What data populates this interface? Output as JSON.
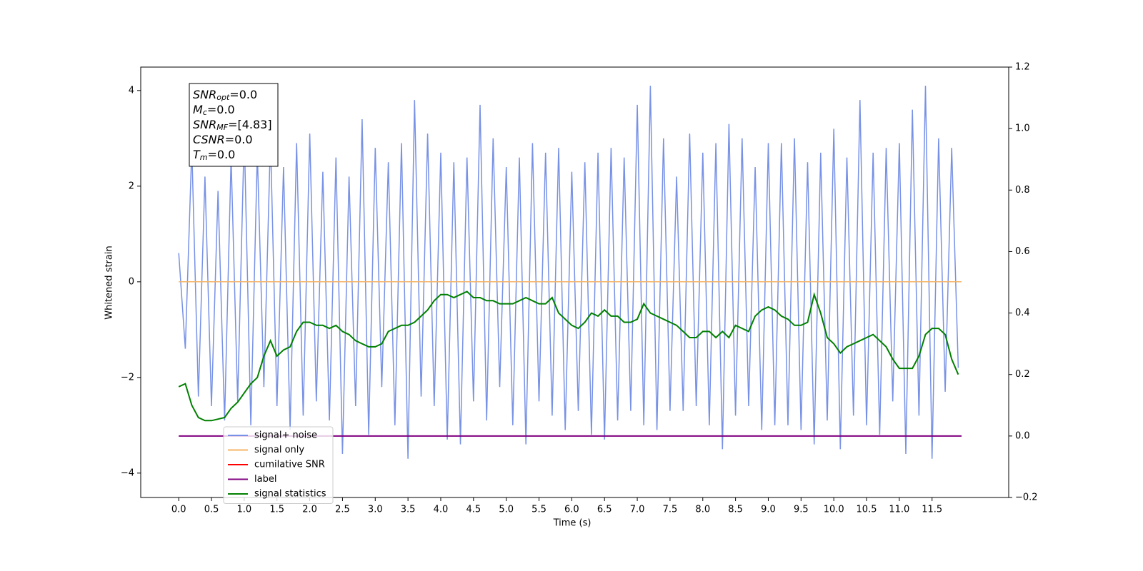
{
  "chart_data": {
    "type": "line",
    "x_label": "Time (s)",
    "y_label": "Whitened strain",
    "xlim": [
      -0.58,
      12.67
    ],
    "ylim": [
      -4.51,
      4.49
    ],
    "y2lim": [
      -0.2,
      1.2
    ],
    "xticks": [
      {
        "value": 0,
        "label": "0.0"
      },
      0.5,
      {
        "value": 1,
        "label": "1.0"
      },
      1.5,
      {
        "value": 2,
        "label": "2.0"
      },
      2.5,
      {
        "value": 3,
        "label": "3.0"
      },
      3.5,
      {
        "value": 4,
        "label": "4.0"
      },
      4.5,
      {
        "value": 5,
        "label": "5.0"
      },
      5.5,
      {
        "value": 6,
        "label": "6.0"
      },
      6.5,
      {
        "value": 7,
        "label": "7.0"
      },
      7.5,
      {
        "value": 8,
        "label": "8.0"
      },
      8.5,
      {
        "value": 9,
        "label": "9.0"
      },
      9.5,
      {
        "value": 10,
        "label": "10.0"
      },
      10.5,
      {
        "value": 11,
        "label": "11.0"
      },
      11.5
    ],
    "yticks": [
      {
        "value": -4,
        "label": "−4"
      },
      {
        "value": -2,
        "label": "−2"
      },
      0,
      2,
      4
    ],
    "y2ticks": [
      {
        "value": -0.2,
        "label": "−0.2"
      },
      {
        "value": 0,
        "label": "0.0"
      },
      0.2,
      0.4,
      0.6,
      0.8,
      {
        "value": 1,
        "label": "1.0"
      },
      1.2
    ],
    "legend": "lower left",
    "annotation": [
      {
        "main": "SNR",
        "sub": "opt",
        "rest": "=0.0"
      },
      {
        "main": "M",
        "sub": "c",
        "rest": "=0.0"
      },
      {
        "main": "SNR",
        "sub": "MF",
        "rest": "=[4.83]"
      },
      {
        "main": "CSNR",
        "rest": "=0.0"
      },
      {
        "main": "T",
        "sub": "m",
        "rest": "=0.0"
      }
    ],
    "series": [
      {
        "name": "signal+ noise",
        "color": "#7791e6",
        "x": [
          0,
          0.1,
          0.2,
          0.3,
          0.4,
          0.5,
          0.6,
          0.7,
          0.8,
          0.9,
          1,
          1.1,
          1.2,
          1.3,
          1.4,
          1.5,
          1.6,
          1.7,
          1.8,
          1.9,
          2,
          2.1,
          2.2,
          2.3,
          2.4,
          2.5,
          2.6,
          2.7,
          2.8,
          2.9,
          3,
          3.1,
          3.2,
          3.3,
          3.4,
          3.5,
          3.6,
          3.7,
          3.8,
          3.9,
          4,
          4.1,
          4.2,
          4.3,
          4.4,
          4.5,
          4.6,
          4.7,
          4.8,
          4.9,
          5,
          5.1,
          5.2,
          5.3,
          5.4,
          5.5,
          5.6,
          5.7,
          5.8,
          5.9,
          6,
          6.1,
          6.2,
          6.3,
          6.4,
          6.5,
          6.6,
          6.7,
          6.8,
          6.9,
          7,
          7.1,
          7.2,
          7.3,
          7.4,
          7.5,
          7.6,
          7.7,
          7.8,
          7.9,
          8,
          8.1,
          8.2,
          8.3,
          8.4,
          8.5,
          8.6,
          8.7,
          8.8,
          8.9,
          9,
          9.1,
          9.2,
          9.3,
          9.4,
          9.5,
          9.6,
          9.7,
          9.8,
          9.9,
          10,
          10.1,
          10.2,
          10.3,
          10.4,
          10.5,
          10.6,
          10.7,
          10.8,
          10.9,
          11,
          11.1,
          11.2,
          11.3,
          11.4,
          11.5,
          11.6,
          11.7,
          11.8,
          11.9
        ],
        "values": [
          0.6,
          -1.4,
          2.8,
          -2.4,
          2.2,
          -2.6,
          1.9,
          -2.9,
          2.6,
          -2.5,
          3.1,
          -3.0,
          2.7,
          -2.2,
          3.0,
          -2.6,
          2.4,
          -3.1,
          2.9,
          -2.8,
          3.1,
          -2.5,
          2.3,
          -2.9,
          2.6,
          -3.6,
          2.2,
          -2.6,
          3.4,
          -3.2,
          2.8,
          -2.2,
          2.5,
          -3.0,
          2.9,
          -3.7,
          3.8,
          -2.4,
          3.1,
          -2.6,
          2.7,
          -3.3,
          2.5,
          -3.4,
          2.6,
          -2.5,
          3.7,
          -2.9,
          3.0,
          -2.2,
          2.4,
          -3.0,
          2.6,
          -3.4,
          2.9,
          -2.5,
          2.7,
          -2.8,
          2.8,
          -3.1,
          2.3,
          -2.7,
          2.5,
          -3.2,
          2.7,
          -3.3,
          2.8,
          -2.9,
          2.6,
          -2.7,
          3.7,
          -3.0,
          4.1,
          -3.1,
          3.0,
          -2.7,
          2.2,
          -2.7,
          3.1,
          -2.6,
          2.7,
          -3.0,
          2.9,
          -3.5,
          3.3,
          -2.8,
          3.0,
          -2.6,
          2.4,
          -3.1,
          2.9,
          -3.0,
          2.9,
          -3.0,
          3.0,
          -3.1,
          2.5,
          -3.4,
          2.7,
          -2.9,
          3.2,
          -3.5,
          2.6,
          -2.8,
          3.8,
          -3.0,
          2.7,
          -3.2,
          2.8,
          -2.5,
          2.9,
          -3.6,
          3.6,
          -2.8,
          4.1,
          -3.7,
          3.0,
          -2.3,
          2.8,
          -1.8
        ]
      },
      {
        "name": "signal only",
        "color": "#f5b466",
        "x": [
          0,
          11.95
        ],
        "values": [
          0,
          0
        ]
      },
      {
        "name": "cumilative SNR",
        "color": "#ff0000"
      },
      {
        "name": "label",
        "color": "#800080",
        "axis": "y2",
        "x": [
          0,
          11.95
        ],
        "values": [
          0,
          0
        ]
      },
      {
        "name": "signal statistics",
        "color": "#008000",
        "axis": "y2",
        "x": [
          0,
          0.1,
          0.2,
          0.3,
          0.4,
          0.5,
          0.6,
          0.7,
          0.8,
          0.9,
          1,
          1.1,
          1.2,
          1.3,
          1.4,
          1.5,
          1.6,
          1.7,
          1.8,
          1.9,
          2,
          2.1,
          2.2,
          2.3,
          2.4,
          2.5,
          2.6,
          2.7,
          2.8,
          2.9,
          3,
          3.1,
          3.2,
          3.3,
          3.4,
          3.5,
          3.6,
          3.7,
          3.8,
          3.9,
          4,
          4.1,
          4.2,
          4.3,
          4.4,
          4.5,
          4.6,
          4.7,
          4.8,
          4.9,
          5,
          5.1,
          5.2,
          5.3,
          5.4,
          5.5,
          5.6,
          5.7,
          5.8,
          5.9,
          6,
          6.1,
          6.2,
          6.3,
          6.4,
          6.5,
          6.6,
          6.7,
          6.8,
          6.9,
          7,
          7.1,
          7.2,
          7.3,
          7.4,
          7.5,
          7.6,
          7.7,
          7.8,
          7.9,
          8,
          8.1,
          8.2,
          8.3,
          8.4,
          8.5,
          8.6,
          8.7,
          8.8,
          8.9,
          9,
          9.1,
          9.2,
          9.3,
          9.4,
          9.5,
          9.6,
          9.7,
          9.8,
          9.9,
          10,
          10.1,
          10.2,
          10.3,
          10.4,
          10.5,
          10.6,
          10.7,
          10.8,
          10.9,
          11,
          11.1,
          11.2,
          11.3,
          11.4,
          11.5,
          11.6,
          11.7,
          11.8,
          11.9
        ],
        "values": [
          0.16,
          0.17,
          0.1,
          0.06,
          0.05,
          0.05,
          0.055,
          0.06,
          0.09,
          0.11,
          0.14,
          0.17,
          0.19,
          0.26,
          0.31,
          0.26,
          0.28,
          0.29,
          0.34,
          0.37,
          0.37,
          0.36,
          0.36,
          0.35,
          0.36,
          0.34,
          0.33,
          0.31,
          0.3,
          0.29,
          0.29,
          0.3,
          0.34,
          0.35,
          0.36,
          0.36,
          0.37,
          0.39,
          0.41,
          0.44,
          0.46,
          0.46,
          0.45,
          0.46,
          0.47,
          0.45,
          0.45,
          0.44,
          0.44,
          0.43,
          0.43,
          0.43,
          0.44,
          0.45,
          0.44,
          0.43,
          0.43,
          0.45,
          0.4,
          0.38,
          0.36,
          0.35,
          0.37,
          0.4,
          0.39,
          0.41,
          0.39,
          0.39,
          0.37,
          0.37,
          0.38,
          0.43,
          0.4,
          0.39,
          0.38,
          0.37,
          0.36,
          0.34,
          0.32,
          0.32,
          0.34,
          0.34,
          0.32,
          0.34,
          0.32,
          0.36,
          0.35,
          0.34,
          0.39,
          0.41,
          0.42,
          0.41,
          0.39,
          0.38,
          0.36,
          0.36,
          0.37,
          0.46,
          0.4,
          0.32,
          0.3,
          0.27,
          0.29,
          0.3,
          0.31,
          0.32,
          0.33,
          0.31,
          0.29,
          0.25,
          0.22,
          0.22,
          0.22,
          0.26,
          0.33,
          0.35,
          0.35,
          0.33,
          0.25,
          0.2
        ]
      }
    ]
  }
}
